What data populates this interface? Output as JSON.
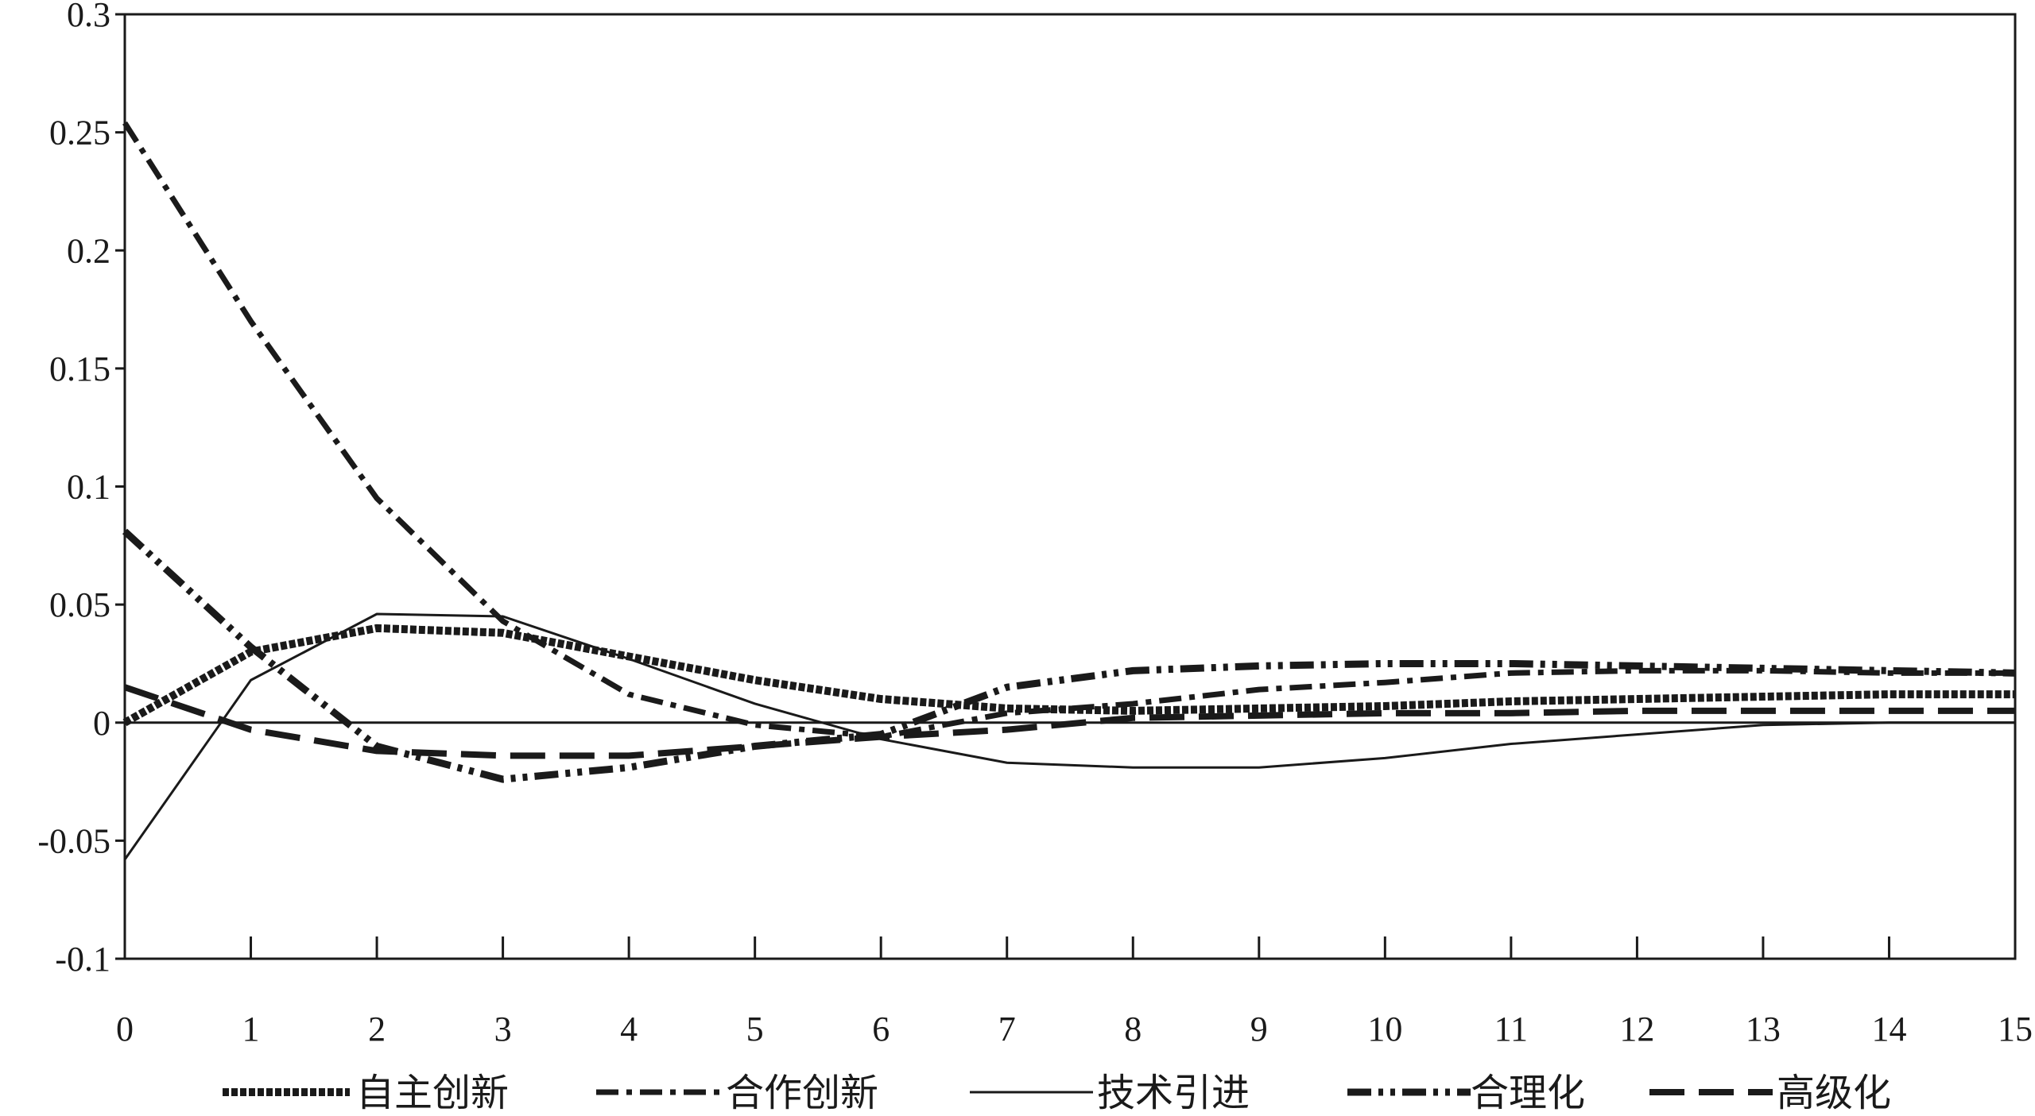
{
  "chart_data": {
    "type": "line",
    "title": "",
    "xlabel": "",
    "ylabel": "",
    "x": [
      0,
      1,
      2,
      3,
      4,
      5,
      6,
      7,
      8,
      9,
      10,
      11,
      12,
      13,
      14,
      15
    ],
    "xlim": [
      0,
      15
    ],
    "ylim": [
      -0.1,
      0.3
    ],
    "x_ticks": [
      "0",
      "1",
      "2",
      "3",
      "4",
      "5",
      "6",
      "7",
      "8",
      "9",
      "10",
      "11",
      "12",
      "13",
      "14",
      "15"
    ],
    "y_ticks": [
      "-0.1",
      "-0.05",
      "0",
      "0.05",
      "0.1",
      "0.15",
      "0.2",
      "0.25",
      "0.3"
    ],
    "y_tick_values": [
      -0.1,
      -0.05,
      0,
      0.05,
      0.1,
      0.15,
      0.2,
      0.25,
      0.3
    ],
    "grid": false,
    "zero_line": true,
    "legend_position": "bottom",
    "series": [
      {
        "name": "自主创新",
        "style": "dense-dash-thick",
        "color": "#1a1a1a",
        "values": [
          0.0,
          0.03,
          0.04,
          0.038,
          0.028,
          0.018,
          0.01,
          0.006,
          0.005,
          0.006,
          0.007,
          0.009,
          0.01,
          0.011,
          0.012,
          0.012
        ]
      },
      {
        "name": "合作创新",
        "style": "dash-dot",
        "color": "#1a1a1a",
        "values": [
          0.254,
          0.17,
          0.095,
          0.043,
          0.012,
          -0.001,
          -0.006,
          0.004,
          0.008,
          0.014,
          0.017,
          0.021,
          0.022,
          0.022,
          0.021,
          0.021
        ]
      },
      {
        "name": "技术引进",
        "style": "solid-thin",
        "color": "#1a1a1a",
        "values": [
          -0.058,
          0.018,
          0.046,
          0.045,
          0.027,
          0.008,
          -0.007,
          -0.017,
          -0.019,
          -0.019,
          -0.015,
          -0.009,
          -0.005,
          -0.001,
          0.0,
          0.0
        ]
      },
      {
        "name": "合理化",
        "style": "dash-dot-dot-thick",
        "color": "#1a1a1a",
        "values": [
          0.081,
          0.032,
          -0.01,
          -0.024,
          -0.019,
          -0.01,
          -0.005,
          0.015,
          0.022,
          0.024,
          0.025,
          0.025,
          0.024,
          0.023,
          0.022,
          0.021
        ]
      },
      {
        "name": "高级化",
        "style": "long-dash-thick",
        "color": "#1a1a1a",
        "values": [
          0.015,
          -0.003,
          -0.012,
          -0.014,
          -0.014,
          -0.01,
          -0.006,
          -0.003,
          0.002,
          0.003,
          0.004,
          0.004,
          0.005,
          0.005,
          0.005,
          0.005
        ]
      }
    ]
  }
}
